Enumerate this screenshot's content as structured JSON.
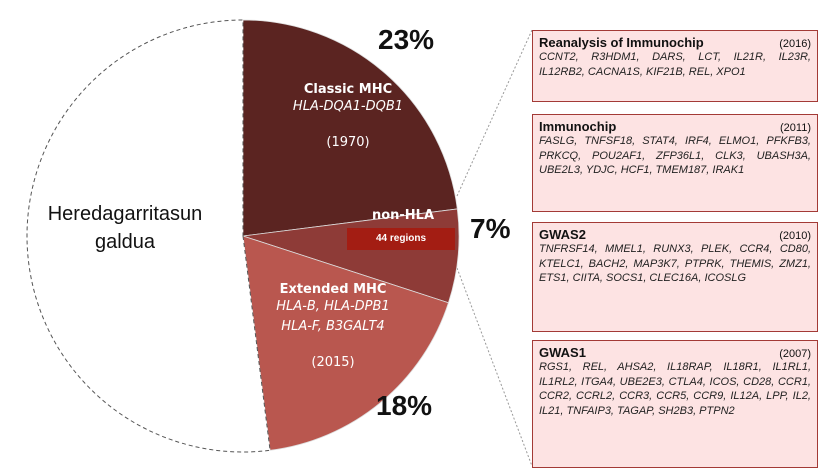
{
  "chart_data": {
    "type": "pie",
    "categories": [
      "Classic MHC",
      "non-HLA",
      "Extended MHC",
      "Heredagarritasun galdua"
    ],
    "values": [
      23,
      7,
      18,
      52
    ],
    "value_labels": [
      "23%",
      "7%",
      "18%",
      null
    ],
    "colors": [
      "#5b2421",
      "#8e3b37",
      "#b9574f",
      "#ffffff"
    ],
    "genes": [
      [
        "HLA-DQA1-DQB1"
      ],
      null,
      [
        "HLA-B, HLA-DPB1",
        "HLA-F, B3GALT4"
      ],
      null
    ],
    "years": [
      "(1970)",
      null,
      "(2015)",
      null
    ],
    "annotation": "44 regions"
  },
  "studies": [
    {
      "title": "Reanalysis of Immunochip",
      "year": "(2016)",
      "genes": "CCNT2, R3HDM1, DARS, LCT, IL21R, IL23R, IL12RB2, CACNA1S, KIF21B, REL, XPO1"
    },
    {
      "title": "Immunochip",
      "year": "(2011)",
      "genes": "FASLG, TNFSF18, STAT4, IRF4, ELMO1, PFKFB3, PRKCQ, POU2AF1, ZFP36L1, CLK3, UBASH3A, UBE2L3, YDJC, HCF1, TMEM187, IRAK1"
    },
    {
      "title": "GWAS2",
      "year": "(2010)",
      "genes": "TNFRSF14, MMEL1, RUNX3, PLEK, CCR4, CD80, KTELC1, BACH2, MAP3K7, PTPRK, THEMIS, ZMZ1, ETS1, CIITA, SOCS1, CLEC16A, ICOSLG"
    },
    {
      "title": "GWAS1",
      "year": "(2007)",
      "genes": "RGS1, REL, AHSA2, IL18RAP, IL18R1, IL1RL1, IL1RL2, ITGA4, UBE2E3, CTLA4, ICOS, CD28, CCR1, CCR2, CCRL2, CCR3, CCR5, CCR9, IL12A, LPP, IL2, IL21, TNFAIP3, TAGAP, SH2B3, PTPN2"
    }
  ]
}
